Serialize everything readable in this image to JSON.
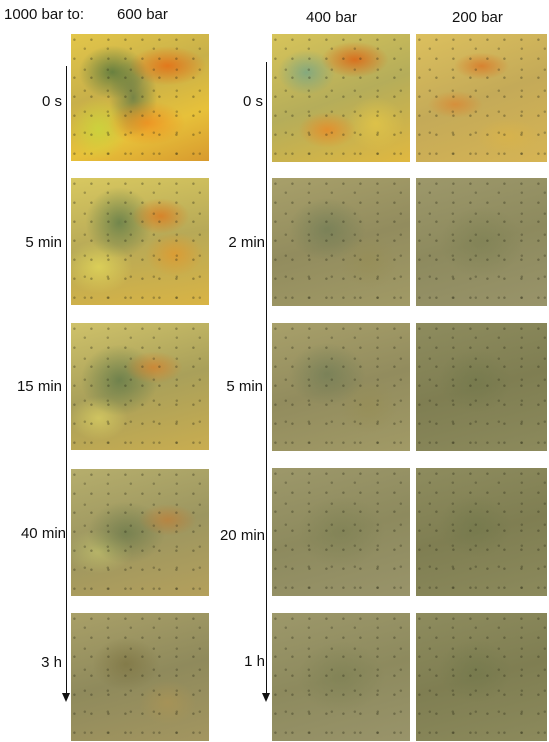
{
  "headers": {
    "prefix": "1000 bar to:",
    "col1": "600 bar",
    "col2": "400 bar",
    "col3": "200 bar"
  },
  "left_times": [
    "0 s",
    "5 min",
    "15 min",
    "40 min",
    "3 h"
  ],
  "right_times": [
    "0 s",
    "2 min",
    "5 min",
    "20 min",
    "1 h"
  ]
}
